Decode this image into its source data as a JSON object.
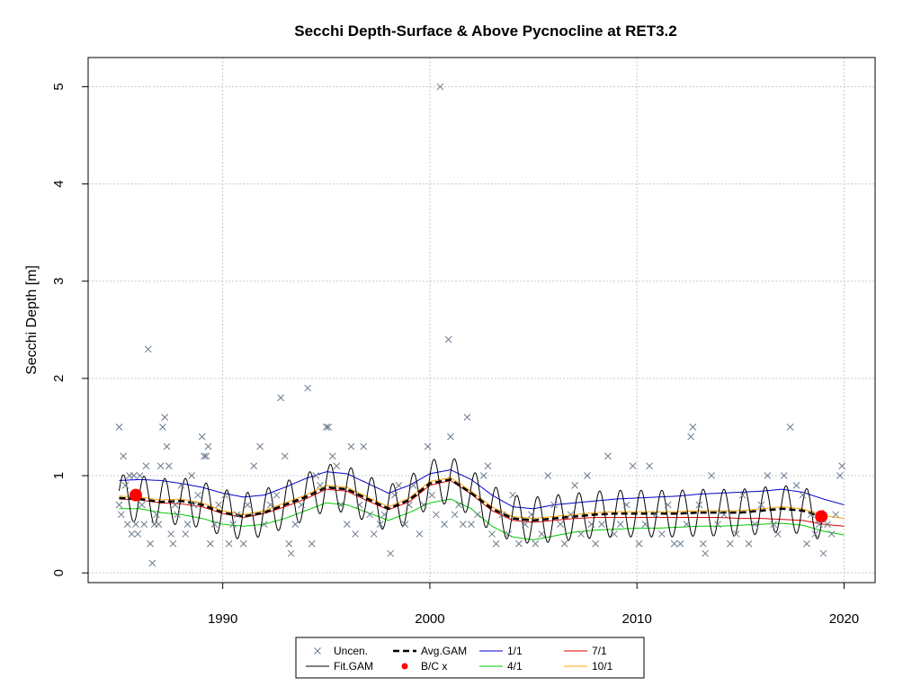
{
  "chart_data": {
    "type": "scatter",
    "title": "Secchi Depth-Surface & Above Pycnocline at RET3.2",
    "xlabel": "",
    "ylabel": "Secchi Depth [m]",
    "xlim": [
      1983.5,
      2021.5
    ],
    "ylim": [
      -0.1,
      5.3
    ],
    "x_ticks": [
      1990,
      2000,
      2010,
      2020
    ],
    "x_tick_labels": [
      "1990",
      "2000",
      "2010",
      "2020"
    ],
    "y_ticks": [
      0,
      1,
      2,
      3,
      4,
      5
    ],
    "y_tick_labels": [
      "0",
      "1",
      "2",
      "3",
      "4",
      "5"
    ],
    "grid": true,
    "legend_position": "bottom-center",
    "legend": {
      "uncen": "Uncen.",
      "fit_gam": "Fit.GAM",
      "avg_gam": "Avg.GAM",
      "bc": "B/C x",
      "s1": "1/1",
      "s4": "4/1",
      "s7": "7/1",
      "s10": "10/1"
    },
    "colors": {
      "uncen": "#6b7b8c",
      "fit_gam": "#000000",
      "avg_gam": "#000000",
      "bc": "#ff0000",
      "s1": "#0000cc",
      "s4": "#00cc00",
      "s7": "#dd0000",
      "s10": "#ffa500"
    },
    "fit_seasonal_amplitude": 0.24,
    "avg_gam": {
      "x": [
        1985,
        1986,
        1987,
        1988,
        1989,
        1990,
        1991,
        1992,
        1993,
        1994,
        1995,
        1996,
        1997,
        1998,
        1999,
        2000,
        2001,
        2002,
        2003,
        2004,
        2005,
        2006,
        2007,
        2008,
        2009,
        2010,
        2011,
        2012,
        2013,
        2014,
        2015,
        2016,
        2017,
        2018,
        2019
      ],
      "y": [
        0.77,
        0.76,
        0.73,
        0.74,
        0.7,
        0.62,
        0.58,
        0.62,
        0.7,
        0.78,
        0.88,
        0.86,
        0.76,
        0.66,
        0.75,
        0.92,
        0.96,
        0.82,
        0.66,
        0.56,
        0.54,
        0.56,
        0.58,
        0.6,
        0.61,
        0.61,
        0.61,
        0.61,
        0.62,
        0.62,
        0.62,
        0.64,
        0.66,
        0.64,
        0.57
      ]
    },
    "series": [
      {
        "name": "1/1",
        "x": [
          1985,
          1986,
          1987,
          1988,
          1989,
          1990,
          1991,
          1992,
          1993,
          1994,
          1995,
          1996,
          1997,
          1998,
          1999,
          2000,
          2001,
          2002,
          2003,
          2004,
          2005,
          2006,
          2007,
          2008,
          2009,
          2010,
          2011,
          2012,
          2013,
          2014,
          2015,
          2016,
          2017,
          2018,
          2019,
          2020
        ],
        "y": [
          0.95,
          0.96,
          0.95,
          0.92,
          0.88,
          0.82,
          0.78,
          0.8,
          0.88,
          0.97,
          1.04,
          1.02,
          0.92,
          0.82,
          0.9,
          1.02,
          1.06,
          0.96,
          0.8,
          0.68,
          0.66,
          0.7,
          0.72,
          0.74,
          0.76,
          0.77,
          0.78,
          0.79,
          0.81,
          0.82,
          0.83,
          0.84,
          0.86,
          0.83,
          0.76,
          0.7
        ]
      },
      {
        "name": "4/1",
        "x": [
          1985,
          1986,
          1987,
          1988,
          1989,
          1990,
          1991,
          1992,
          1993,
          1994,
          1995,
          1996,
          1997,
          1998,
          1999,
          2000,
          2001,
          2002,
          2003,
          2004,
          2005,
          2006,
          2007,
          2008,
          2009,
          2010,
          2011,
          2012,
          2013,
          2014,
          2015,
          2016,
          2017,
          2018,
          2019,
          2020
        ],
        "y": [
          0.66,
          0.66,
          0.62,
          0.6,
          0.56,
          0.5,
          0.48,
          0.5,
          0.56,
          0.64,
          0.72,
          0.7,
          0.62,
          0.54,
          0.62,
          0.72,
          0.76,
          0.66,
          0.48,
          0.37,
          0.34,
          0.38,
          0.42,
          0.44,
          0.45,
          0.46,
          0.46,
          0.47,
          0.48,
          0.48,
          0.49,
          0.5,
          0.51,
          0.49,
          0.43,
          0.39
        ]
      },
      {
        "name": "7/1",
        "x": [
          1985,
          1986,
          1987,
          1988,
          1989,
          1990,
          1991,
          1992,
          1993,
          1994,
          1995,
          1996,
          1997,
          1998,
          1999,
          2000,
          2001,
          2002,
          2003,
          2004,
          2005,
          2006,
          2007,
          2008,
          2009,
          2010,
          2011,
          2012,
          2013,
          2014,
          2015,
          2016,
          2017,
          2018,
          2019,
          2020
        ],
        "y": [
          0.76,
          0.75,
          0.72,
          0.71,
          0.68,
          0.61,
          0.57,
          0.61,
          0.68,
          0.76,
          0.86,
          0.84,
          0.74,
          0.65,
          0.73,
          0.9,
          0.95,
          0.81,
          0.64,
          0.54,
          0.52,
          0.54,
          0.56,
          0.57,
          0.57,
          0.57,
          0.57,
          0.57,
          0.57,
          0.57,
          0.56,
          0.56,
          0.55,
          0.54,
          0.5,
          0.48
        ]
      },
      {
        "name": "10/1",
        "x": [
          1985,
          1986,
          1987,
          1988,
          1989,
          1990,
          1991,
          1992,
          1993,
          1994,
          1995,
          1996,
          1997,
          1998,
          1999,
          2000,
          2001,
          2002,
          2003,
          2004,
          2005,
          2006,
          2007,
          2008,
          2009,
          2010,
          2011,
          2012,
          2013,
          2014,
          2015,
          2016,
          2017,
          2018,
          2019,
          2020
        ],
        "y": [
          0.79,
          0.78,
          0.75,
          0.76,
          0.72,
          0.64,
          0.6,
          0.64,
          0.72,
          0.8,
          0.9,
          0.88,
          0.78,
          0.68,
          0.77,
          0.94,
          0.98,
          0.84,
          0.68,
          0.58,
          0.56,
          0.58,
          0.6,
          0.62,
          0.63,
          0.63,
          0.63,
          0.63,
          0.64,
          0.64,
          0.64,
          0.66,
          0.68,
          0.66,
          0.59,
          0.56
        ]
      }
    ],
    "bc_points": [
      {
        "x": 1985.8,
        "y": 0.8
      },
      {
        "x": 2018.9,
        "y": 0.58
      }
    ],
    "observations": [
      [
        1985.0,
        1.5
      ],
      [
        1985.0,
        0.7
      ],
      [
        1985.1,
        0.6
      ],
      [
        1985.2,
        1.2
      ],
      [
        1985.3,
        0.9
      ],
      [
        1985.4,
        0.5
      ],
      [
        1985.5,
        1.0
      ],
      [
        1985.6,
        0.4
      ],
      [
        1985.7,
        1.0
      ],
      [
        1985.8,
        0.5
      ],
      [
        1985.9,
        0.4
      ],
      [
        1986.0,
        1.0
      ],
      [
        1986.1,
        0.7
      ],
      [
        1986.2,
        0.5
      ],
      [
        1986.3,
        1.1
      ],
      [
        1986.4,
        2.3
      ],
      [
        1986.5,
        0.3
      ],
      [
        1986.6,
        0.1
      ],
      [
        1986.7,
        0.5
      ],
      [
        1986.8,
        0.6
      ],
      [
        1986.9,
        0.5
      ],
      [
        1987.0,
        1.1
      ],
      [
        1987.1,
        1.5
      ],
      [
        1987.2,
        1.6
      ],
      [
        1987.3,
        1.3
      ],
      [
        1987.4,
        1.1
      ],
      [
        1987.5,
        0.4
      ],
      [
        1987.6,
        0.3
      ],
      [
        1987.7,
        0.7
      ],
      [
        1987.8,
        0.6
      ],
      [
        1988.0,
        0.9
      ],
      [
        1988.2,
        0.4
      ],
      [
        1988.3,
        0.5
      ],
      [
        1988.5,
        1.0
      ],
      [
        1988.6,
        0.7
      ],
      [
        1988.8,
        0.8
      ],
      [
        1989.0,
        1.4
      ],
      [
        1989.1,
        1.2
      ],
      [
        1989.2,
        1.2
      ],
      [
        1989.3,
        1.3
      ],
      [
        1989.4,
        0.3
      ],
      [
        1989.6,
        0.5
      ],
      [
        1989.8,
        0.7
      ],
      [
        1990.1,
        0.8
      ],
      [
        1990.3,
        0.3
      ],
      [
        1990.5,
        0.5
      ],
      [
        1990.7,
        0.6
      ],
      [
        1991.0,
        0.3
      ],
      [
        1991.2,
        0.7
      ],
      [
        1991.5,
        1.1
      ],
      [
        1991.8,
        1.3
      ],
      [
        1992.0,
        0.5
      ],
      [
        1992.3,
        0.7
      ],
      [
        1992.6,
        0.8
      ],
      [
        1992.8,
        1.8
      ],
      [
        1993.0,
        1.2
      ],
      [
        1993.2,
        0.3
      ],
      [
        1993.3,
        0.2
      ],
      [
        1993.5,
        0.5
      ],
      [
        1993.8,
        0.7
      ],
      [
        1994.1,
        1.9
      ],
      [
        1994.3,
        0.3
      ],
      [
        1994.5,
        1.0
      ],
      [
        1994.7,
        0.9
      ],
      [
        1995.0,
        1.5
      ],
      [
        1995.1,
        1.5
      ],
      [
        1995.3,
        1.2
      ],
      [
        1995.5,
        1.1
      ],
      [
        1995.7,
        0.7
      ],
      [
        1996.0,
        0.5
      ],
      [
        1996.2,
        1.3
      ],
      [
        1996.4,
        0.4
      ],
      [
        1996.6,
        0.7
      ],
      [
        1996.8,
        1.3
      ],
      [
        1997.1,
        0.6
      ],
      [
        1997.3,
        0.4
      ],
      [
        1997.6,
        0.5
      ],
      [
        1997.8,
        0.6
      ],
      [
        1998.1,
        0.2
      ],
      [
        1998.3,
        0.8
      ],
      [
        1998.5,
        0.9
      ],
      [
        1998.8,
        0.5
      ],
      [
        1999.0,
        0.7
      ],
      [
        1999.2,
        0.9
      ],
      [
        1999.5,
        0.4
      ],
      [
        1999.7,
        0.7
      ],
      [
        1999.9,
        1.3
      ],
      [
        2000.1,
        0.8
      ],
      [
        2000.3,
        0.6
      ],
      [
        2000.5,
        5.0
      ],
      [
        2000.7,
        0.5
      ],
      [
        2000.9,
        2.4
      ],
      [
        2001.0,
        1.4
      ],
      [
        2001.2,
        0.6
      ],
      [
        2001.4,
        0.7
      ],
      [
        2001.6,
        0.5
      ],
      [
        2001.8,
        1.6
      ],
      [
        2002.0,
        0.5
      ],
      [
        2002.3,
        0.6
      ],
      [
        2002.6,
        1.0
      ],
      [
        2002.8,
        1.1
      ],
      [
        2003.0,
        0.4
      ],
      [
        2003.2,
        0.3
      ],
      [
        2003.5,
        0.6
      ],
      [
        2003.8,
        0.4
      ],
      [
        2004.0,
        0.8
      ],
      [
        2004.3,
        0.3
      ],
      [
        2004.6,
        0.5
      ],
      [
        2004.9,
        0.6
      ],
      [
        2005.1,
        0.3
      ],
      [
        2005.4,
        0.4
      ],
      [
        2005.7,
        1.0
      ],
      [
        2006.0,
        0.7
      ],
      [
        2006.3,
        0.5
      ],
      [
        2006.5,
        0.3
      ],
      [
        2006.8,
        0.6
      ],
      [
        2007.0,
        0.9
      ],
      [
        2007.3,
        0.4
      ],
      [
        2007.6,
        1.0
      ],
      [
        2007.8,
        0.5
      ],
      [
        2008.0,
        0.3
      ],
      [
        2008.3,
        0.5
      ],
      [
        2008.6,
        1.2
      ],
      [
        2008.9,
        0.4
      ],
      [
        2009.2,
        0.5
      ],
      [
        2009.5,
        0.7
      ],
      [
        2009.8,
        1.1
      ],
      [
        2010.1,
        0.3
      ],
      [
        2010.4,
        0.5
      ],
      [
        2010.6,
        1.1
      ],
      [
        2010.9,
        0.6
      ],
      [
        2011.2,
        0.4
      ],
      [
        2011.5,
        0.7
      ],
      [
        2011.8,
        0.3
      ],
      [
        2012.1,
        0.3
      ],
      [
        2012.4,
        0.5
      ],
      [
        2012.6,
        1.4
      ],
      [
        2012.7,
        1.5
      ],
      [
        2013.0,
        0.7
      ],
      [
        2013.2,
        0.3
      ],
      [
        2013.3,
        0.2
      ],
      [
        2013.6,
        1.0
      ],
      [
        2013.9,
        0.5
      ],
      [
        2014.2,
        0.6
      ],
      [
        2014.5,
        0.3
      ],
      [
        2014.8,
        0.4
      ],
      [
        2015.1,
        0.8
      ],
      [
        2015.4,
        0.3
      ],
      [
        2015.7,
        0.5
      ],
      [
        2016.0,
        0.7
      ],
      [
        2016.3,
        1.0
      ],
      [
        2016.6,
        0.5
      ],
      [
        2016.8,
        0.4
      ],
      [
        2017.1,
        1.0
      ],
      [
        2017.4,
        1.5
      ],
      [
        2017.7,
        0.9
      ],
      [
        2018.0,
        0.8
      ],
      [
        2018.2,
        0.3
      ],
      [
        2018.4,
        0.6
      ],
      [
        2018.6,
        0.4
      ],
      [
        2018.8,
        0.5
      ],
      [
        2019.0,
        0.2
      ],
      [
        2019.2,
        0.5
      ],
      [
        2019.4,
        0.4
      ],
      [
        2019.6,
        0.6
      ],
      [
        2019.8,
        1.0
      ],
      [
        2019.9,
        1.1
      ]
    ]
  }
}
